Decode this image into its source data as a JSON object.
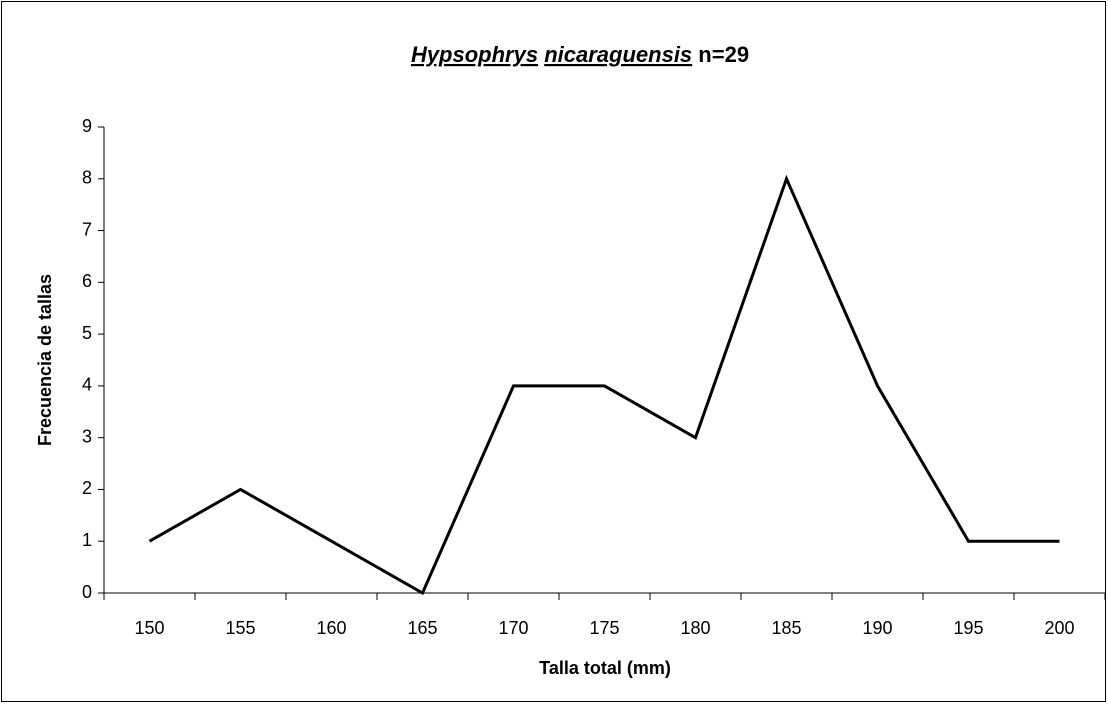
{
  "chart_data": {
    "type": "line",
    "title": [
      "Hypsophrys",
      "nicaraguensis",
      "n=29"
    ],
    "x_label": "Talla total (mm)",
    "y_label": "Frecuencia de tallas",
    "categories": [
      "150",
      "155",
      "160",
      "165",
      "170",
      "175",
      "180",
      "185",
      "190",
      "195",
      "200"
    ],
    "series": [
      {
        "color": "#000000",
        "values": [
          1,
          2,
          1,
          0,
          4,
          4,
          3,
          8,
          4,
          1,
          1
        ]
      }
    ],
    "ylim": [
      0,
      9
    ],
    "yticks": [
      0,
      1,
      2,
      3,
      4,
      5,
      6,
      7,
      8,
      9
    ],
    "grid": false
  }
}
